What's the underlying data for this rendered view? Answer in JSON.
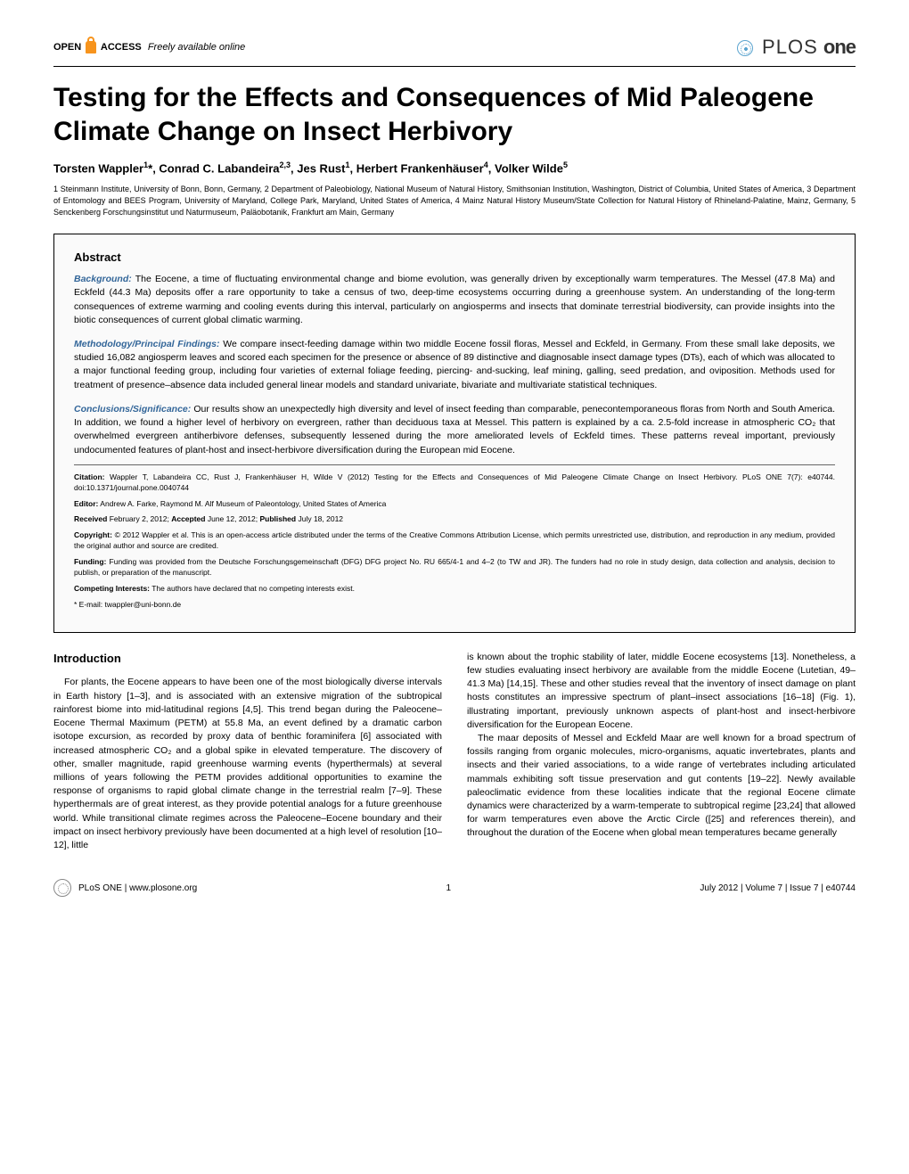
{
  "header": {
    "open_access_prefix": "OPEN",
    "open_access_suffix": "ACCESS",
    "freely_available": "Freely available online",
    "journal_plos": "PLOS",
    "journal_one": "one"
  },
  "title": "Testing for the Effects and Consequences of Mid Paleogene Climate Change on Insect Herbivory",
  "authors_html": "Torsten Wappler<sup>1</sup>*, Conrad C. Labandeira<sup>2,3</sup>, Jes Rust<sup>1</sup>, Herbert Frankenhäuser<sup>4</sup>, Volker Wilde<sup>5</sup>",
  "affiliations": "1 Steinmann Institute, University of Bonn, Bonn, Germany, 2 Department of Paleobiology, National Museum of Natural History, Smithsonian Institution, Washington, District of Columbia, United States of America, 3 Department of Entomology and BEES Program, University of Maryland, College Park, Maryland, United States of America, 4 Mainz Natural History Museum/State Collection for Natural History of Rhineland-Palatine, Mainz, Germany, 5 Senckenberg Forschungsinstitut und Naturmuseum, Paläobotanik, Frankfurt am Main, Germany",
  "abstract": {
    "title": "Abstract",
    "background_label": "Background:",
    "background": "The Eocene, a time of fluctuating environmental change and biome evolution, was generally driven by exceptionally warm temperatures. The Messel (47.8 Ma) and Eckfeld (44.3 Ma) deposits offer a rare opportunity to take a census of two, deep-time ecosystems occurring during a greenhouse system. An understanding of the long-term consequences of extreme warming and cooling events during this interval, particularly on angiosperms and insects that dominate terrestrial biodiversity, can provide insights into the biotic consequences of current global climatic warming.",
    "methods_label": "Methodology/Principal Findings:",
    "methods": "We compare insect-feeding damage within two middle Eocene fossil floras, Messel and Eckfeld, in Germany. From these small lake deposits, we studied 16,082 angiosperm leaves and scored each specimen for the presence or absence of 89 distinctive and diagnosable insect damage types (DTs), each of which was allocated to a major functional feeding group, including four varieties of external foliage feeding, piercing- and-sucking, leaf mining, galling, seed predation, and oviposition. Methods used for treatment of presence–absence data included general linear models and standard univariate, bivariate and multivariate statistical techniques.",
    "conclusions_label": "Conclusions/Significance:",
    "conclusions": "Our results show an unexpectedly high diversity and level of insect feeding than comparable, penecontemporaneous floras from North and South America. In addition, we found a higher level of herbivory on evergreen, rather than deciduous taxa at Messel. This pattern is explained by a ca. 2.5-fold increase in atmospheric CO₂ that overwhelmed evergreen antiherbivore defenses, subsequently lessened during the more ameliorated levels of Eckfeld times. These patterns reveal important, previously undocumented features of plant-host and insect-herbivore diversification during the European mid Eocene."
  },
  "meta": {
    "citation_label": "Citation:",
    "citation": "Wappler T, Labandeira CC, Rust J, Frankenhäuser H, Wilde V (2012) Testing for the Effects and Consequences of Mid Paleogene Climate Change on Insect Herbivory. PLoS ONE 7(7): e40744. doi:10.1371/journal.pone.0040744",
    "editor_label": "Editor:",
    "editor": "Andrew A. Farke, Raymond M. Alf Museum of Paleontology, United States of America",
    "received_label": "Received",
    "received": "February 2, 2012;",
    "accepted_label": "Accepted",
    "accepted": "June 12, 2012;",
    "published_label": "Published",
    "published": "July 18, 2012",
    "copyright_label": "Copyright:",
    "copyright": "© 2012 Wappler et al. This is an open-access article distributed under the terms of the Creative Commons Attribution License, which permits unrestricted use, distribution, and reproduction in any medium, provided the original author and source are credited.",
    "funding_label": "Funding:",
    "funding": "Funding was provided from the Deutsche Forschungsgemeinschaft (DFG) DFG project No. RU 665/4-1 and 4–2 (to TW and JR). The funders had no role in study design, data collection and analysis, decision to publish, or preparation of the manuscript.",
    "competing_label": "Competing Interests:",
    "competing": "The authors have declared that no competing interests exist.",
    "email_label": "* E-mail:",
    "email": "twappler@uni-bonn.de"
  },
  "introduction": {
    "heading": "Introduction",
    "col1": "For plants, the Eocene appears to have been one of the most biologically diverse intervals in Earth history [1–3], and is associated with an extensive migration of the subtropical rainforest biome into mid-latitudinal regions [4,5]. This trend began during the Paleocene–Eocene Thermal Maximum (PETM) at 55.8 Ma, an event defined by a dramatic carbon isotope excursion, as recorded by proxy data of benthic foraminifera [6] associated with increased atmospheric CO₂ and a global spike in elevated temperature. The discovery of other, smaller magnitude, rapid greenhouse warming events (hyperthermals) at several millions of years following the PETM provides additional opportunities to examine the response of organisms to rapid global climate change in the terrestrial realm [7–9]. These hyperthermals are of great interest, as they provide potential analogs for a future greenhouse world. While transitional climate regimes across the Paleocene–Eocene boundary and their impact on insect herbivory previously have been documented at a high level of resolution [10–12], little",
    "col2a": "is known about the trophic stability of later, middle Eocene ecosystems [13]. Nonetheless, a few studies evaluating insect herbivory are available from the middle Eocene (Lutetian, 49–41.3 Ma) [14,15]. These and other studies reveal that the inventory of insect damage on plant hosts constitutes an impressive spectrum of plant–insect associations [16–18] (Fig. 1), illustrating important, previously unknown aspects of plant-host and insect-herbivore diversification for the European Eocene.",
    "col2b": "The maar deposits of Messel and Eckfeld Maar are well known for a broad spectrum of fossils ranging from organic molecules, micro-organisms, aquatic invertebrates, plants and insects and their varied associations, to a wide range of vertebrates including articulated mammals exhibiting soft tissue preservation and gut contents [19–22]. Newly available paleoclimatic evidence from these localities indicate that the regional Eocene climate dynamics were characterized by a warm-temperate to subtropical regime [23,24] that allowed for warm temperatures even above the Arctic Circle ([25] and references therein), and throughout the duration of the Eocene when global mean temperatures became generally"
  },
  "footer": {
    "journal": "PLoS ONE | www.plosone.org",
    "page": "1",
    "issue": "July 2012 | Volume 7 | Issue 7 | e40744"
  },
  "colors": {
    "accent_orange": "#f7941d",
    "abstract_label": "#336699",
    "plos_icon": "#5ba4cf"
  }
}
